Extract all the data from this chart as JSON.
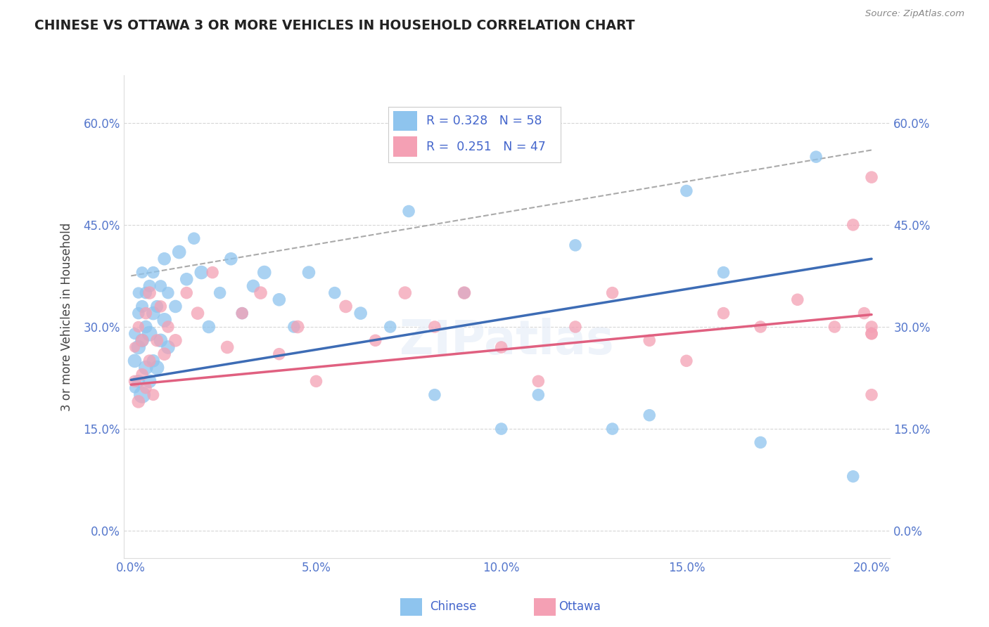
{
  "title": "CHINESE VS OTTAWA 3 OR MORE VEHICLES IN HOUSEHOLD CORRELATION CHART",
  "source": "Source: ZipAtlas.com",
  "ylabel": "3 or more Vehicles in Household",
  "xlim": [
    -0.002,
    0.205
  ],
  "ylim": [
    -0.04,
    0.67
  ],
  "xticks": [
    0.0,
    0.05,
    0.1,
    0.15,
    0.2
  ],
  "xtick_labels": [
    "0.0%",
    "5.0%",
    "10.0%",
    "15.0%",
    "20.0%"
  ],
  "yticks": [
    0.0,
    0.15,
    0.3,
    0.45,
    0.6
  ],
  "ytick_labels": [
    "0.0%",
    "15.0%",
    "30.0%",
    "45.0%",
    "60.0%"
  ],
  "chinese_R": 0.328,
  "chinese_N": 58,
  "ottawa_R": 0.251,
  "ottawa_N": 47,
  "chinese_color": "#8EC4EE",
  "ottawa_color": "#F4A0B4",
  "chinese_line_color": "#3D6CB5",
  "ottawa_line_color": "#E06080",
  "gray_line_color": "#AAAAAA",
  "background_color": "#FFFFFF",
  "grid_color": "#CCCCCC",
  "tick_color": "#5577CC",
  "legend_text_color": "#4466CC",
  "chinese_x": [
    0.001,
    0.001,
    0.001,
    0.002,
    0.002,
    0.002,
    0.002,
    0.003,
    0.003,
    0.003,
    0.003,
    0.004,
    0.004,
    0.004,
    0.005,
    0.005,
    0.005,
    0.006,
    0.006,
    0.006,
    0.007,
    0.007,
    0.008,
    0.008,
    0.009,
    0.009,
    0.01,
    0.01,
    0.012,
    0.013,
    0.015,
    0.017,
    0.019,
    0.021,
    0.024,
    0.027,
    0.03,
    0.033,
    0.036,
    0.04,
    0.044,
    0.048,
    0.055,
    0.062,
    0.07,
    0.075,
    0.082,
    0.09,
    0.1,
    0.11,
    0.12,
    0.13,
    0.14,
    0.15,
    0.16,
    0.17,
    0.185,
    0.195
  ],
  "chinese_y": [
    0.21,
    0.25,
    0.29,
    0.22,
    0.27,
    0.32,
    0.35,
    0.2,
    0.28,
    0.33,
    0.38,
    0.24,
    0.3,
    0.35,
    0.22,
    0.29,
    0.36,
    0.25,
    0.32,
    0.38,
    0.24,
    0.33,
    0.28,
    0.36,
    0.31,
    0.4,
    0.27,
    0.35,
    0.33,
    0.41,
    0.37,
    0.43,
    0.38,
    0.3,
    0.35,
    0.4,
    0.32,
    0.36,
    0.38,
    0.34,
    0.3,
    0.38,
    0.35,
    0.32,
    0.3,
    0.47,
    0.2,
    0.35,
    0.15,
    0.2,
    0.42,
    0.15,
    0.17,
    0.5,
    0.38,
    0.13,
    0.55,
    0.08
  ],
  "chinese_sizes": [
    120,
    200,
    150,
    180,
    220,
    160,
    140,
    300,
    200,
    170,
    150,
    220,
    180,
    160,
    200,
    250,
    170,
    180,
    200,
    160,
    220,
    170,
    200,
    160,
    220,
    180,
    200,
    160,
    180,
    200,
    180,
    160,
    200,
    180,
    160,
    180,
    160,
    180,
    200,
    180,
    160,
    180,
    160,
    180,
    160,
    160,
    160,
    160,
    160,
    160,
    160,
    160,
    160,
    160,
    160,
    160,
    160,
    160
  ],
  "ottawa_x": [
    0.001,
    0.001,
    0.002,
    0.002,
    0.003,
    0.003,
    0.004,
    0.004,
    0.005,
    0.005,
    0.006,
    0.007,
    0.008,
    0.009,
    0.01,
    0.012,
    0.015,
    0.018,
    0.022,
    0.026,
    0.03,
    0.035,
    0.04,
    0.045,
    0.05,
    0.058,
    0.066,
    0.074,
    0.082,
    0.09,
    0.1,
    0.11,
    0.12,
    0.13,
    0.14,
    0.15,
    0.16,
    0.17,
    0.18,
    0.19,
    0.195,
    0.198,
    0.2,
    0.2,
    0.2,
    0.2,
    0.2
  ],
  "ottawa_y": [
    0.22,
    0.27,
    0.19,
    0.3,
    0.23,
    0.28,
    0.21,
    0.32,
    0.25,
    0.35,
    0.2,
    0.28,
    0.33,
    0.26,
    0.3,
    0.28,
    0.35,
    0.32,
    0.38,
    0.27,
    0.32,
    0.35,
    0.26,
    0.3,
    0.22,
    0.33,
    0.28,
    0.35,
    0.3,
    0.35,
    0.27,
    0.22,
    0.3,
    0.35,
    0.28,
    0.25,
    0.32,
    0.3,
    0.34,
    0.3,
    0.45,
    0.32,
    0.29,
    0.3,
    0.52,
    0.2,
    0.29
  ],
  "ottawa_sizes": [
    160,
    120,
    180,
    140,
    160,
    180,
    150,
    160,
    170,
    180,
    150,
    170,
    160,
    180,
    160,
    180,
    160,
    180,
    160,
    180,
    160,
    180,
    160,
    180,
    160,
    180,
    160,
    180,
    160,
    180,
    160,
    160,
    160,
    160,
    160,
    160,
    160,
    160,
    160,
    160,
    160,
    160,
    160,
    160,
    160,
    160,
    160
  ],
  "chinese_trend": [
    0.222,
    0.4
  ],
  "ottawa_trend": [
    0.215,
    0.318
  ],
  "gray_trend": [
    0.375,
    0.56
  ]
}
